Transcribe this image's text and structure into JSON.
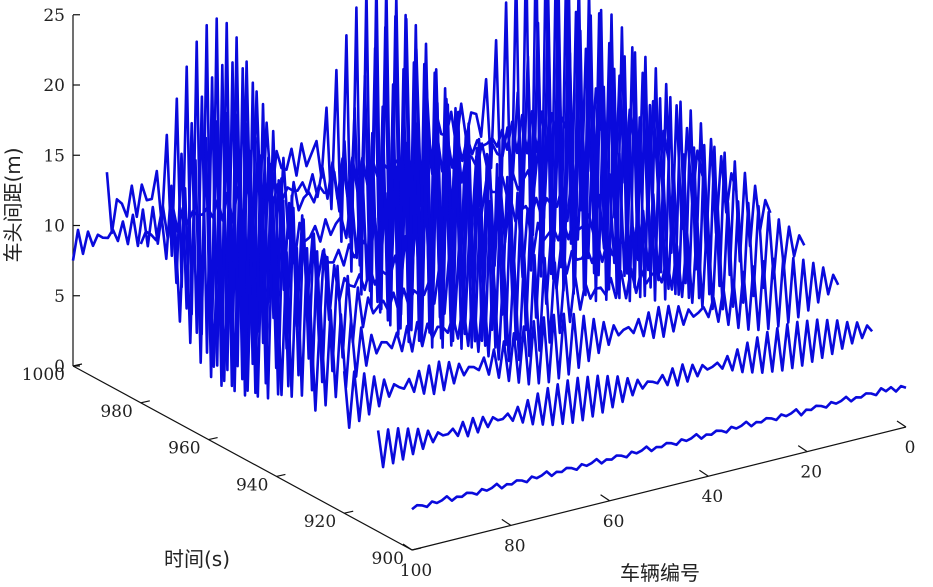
{
  "chart_data": {
    "type": "line",
    "plot_style": "3d waterfall",
    "title": "",
    "xlabel": "车辆编号",
    "ylabel": "时间(s)",
    "zlabel": "车头间距(m)",
    "x_ticks": [
      "0",
      "20",
      "40",
      "60",
      "80",
      "100"
    ],
    "y_ticks": [
      "900",
      "920",
      "940",
      "960",
      "980",
      "1000"
    ],
    "z_ticks": [
      "0",
      "5",
      "10",
      "15",
      "20",
      "25"
    ],
    "xlim": [
      0,
      100
    ],
    "ylim": [
      900,
      1000
    ],
    "zlim": [
      0,
      25
    ],
    "grid": false,
    "line_color": "#0a0adc",
    "series": [
      {
        "time": 900,
        "values": [
          2.8,
          3.0,
          2.7,
          3.1,
          2.9,
          3.2,
          2.8,
          3.0,
          3.1,
          2.9,
          3.0,
          2.8,
          3.2,
          3.0,
          2.9,
          3.1,
          2.8,
          3.0,
          3.1,
          2.9,
          3.0,
          2.7,
          3.2,
          3.0,
          2.9,
          3.1,
          2.8,
          3.0,
          3.1,
          2.9,
          3.0,
          2.8,
          3.2,
          3.0,
          2.9,
          3.1,
          2.8,
          3.0,
          3.1,
          2.9,
          3.0,
          2.8,
          3.2,
          3.0,
          2.9,
          3.1,
          2.8,
          3.0,
          3.1,
          2.9,
          3.0,
          2.8,
          3.2,
          3.0,
          2.9,
          3.1,
          2.8,
          3.0,
          3.1,
          2.9,
          3.0,
          2.8,
          3.2,
          3.0,
          2.9,
          3.1,
          2.8,
          3.0,
          3.1,
          2.9,
          3.0,
          2.8,
          3.2,
          3.0,
          2.9,
          3.1,
          2.8,
          3.0,
          3.1,
          2.9,
          3.0,
          2.8,
          3.2,
          3.0,
          2.9,
          3.1,
          2.8,
          3.0,
          3.1,
          2.9,
          3.0,
          2.8,
          3.2,
          3.0,
          2.9,
          3.1,
          2.8,
          3.0,
          3.1,
          2.9
        ]
      },
      {
        "time": 910,
        "values": [
          5.5,
          6.0,
          5.2,
          6.4,
          5.0,
          6.6,
          4.8,
          6.9,
          4.6,
          7.1,
          4.5,
          7.3,
          4.4,
          7.4,
          4.3,
          7.5,
          4.3,
          7.5,
          4.3,
          7.4,
          4.4,
          7.3,
          4.5,
          7.1,
          4.7,
          6.9,
          4.9,
          6.6,
          5.2,
          6.3,
          5.5,
          6.0,
          5.8,
          5.7,
          6.1,
          5.4,
          6.3,
          5.2,
          6.5,
          5.1,
          6.4,
          5.3,
          6.1,
          5.6,
          5.8,
          5.9,
          5.5,
          6.2,
          5.2,
          6.5,
          4.9,
          6.8,
          4.7,
          7.0,
          4.5,
          7.2,
          4.4,
          7.3,
          4.3,
          7.4,
          4.3,
          7.4,
          4.4,
          7.3,
          4.5,
          7.2,
          4.7,
          7.0,
          4.9,
          6.7,
          5.2,
          6.4,
          5.5,
          6.1,
          5.8,
          5.8,
          6.1,
          5.5,
          6.3,
          5.3,
          6.4,
          5.2,
          6.3,
          5.4,
          6.0,
          5.7,
          5.7,
          6.0,
          5.4,
          6.3,
          5.1,
          6.6,
          4.9,
          6.8,
          4.7,
          7.0,
          4.6,
          7.1,
          4.5,
          7.2
        ]
      },
      {
        "time": 920,
        "values": [
          7.5,
          8.3,
          7.0,
          9.0,
          6.6,
          9.5,
          6.2,
          9.9,
          5.9,
          10.2,
          5.7,
          10.4,
          5.6,
          10.5,
          5.6,
          10.5,
          5.7,
          10.3,
          5.9,
          10.1,
          6.2,
          9.7,
          6.6,
          9.3,
          7.0,
          8.8,
          7.5,
          8.3,
          8.0,
          7.8,
          8.4,
          7.4,
          8.8,
          7.1,
          9.0,
          6.9,
          9.1,
          7.0,
          8.9,
          7.3,
          8.6,
          7.7,
          8.2,
          8.1,
          7.8,
          8.6,
          7.3,
          9.0,
          6.9,
          9.4,
          6.5,
          9.8,
          6.2,
          10.1,
          5.9,
          10.3,
          5.8,
          10.4,
          5.7,
          10.4,
          5.8,
          10.3,
          5.9,
          10.1,
          6.2,
          9.8,
          6.5,
          9.4,
          6.9,
          9.0,
          7.3,
          8.6,
          7.8,
          8.1,
          8.2,
          7.7,
          8.6,
          7.3,
          8.9,
          7.0,
          9.1,
          6.9,
          9.0,
          7.1,
          8.8,
          7.4,
          8.4,
          7.8,
          8.0,
          8.3,
          7.5,
          8.8,
          7.0,
          9.2,
          6.6,
          9.6,
          6.3,
          9.9,
          6.0,
          10.1
        ]
      },
      {
        "time": 930,
        "values": [
          9.0,
          9.8,
          8.4,
          10.6,
          7.8,
          11.3,
          7.2,
          12.0,
          6.7,
          12.6,
          6.3,
          13.0,
          6.0,
          13.3,
          5.9,
          13.4,
          5.9,
          13.3,
          6.1,
          13.0,
          6.4,
          12.5,
          6.9,
          11.9,
          7.5,
          11.2,
          8.2,
          10.5,
          8.9,
          9.8,
          9.6,
          9.1,
          10.1,
          8.6,
          10.4,
          8.4,
          10.4,
          8.6,
          10.1,
          9.0,
          9.6,
          9.6,
          9.0,
          10.2,
          8.4,
          10.9,
          7.7,
          11.6,
          7.1,
          12.2,
          6.6,
          12.7,
          6.2,
          13.1,
          6.0,
          13.3,
          5.9,
          13.3,
          6.0,
          13.1,
          6.3,
          12.7,
          6.7,
          12.2,
          7.2,
          11.6,
          7.8,
          10.9,
          8.5,
          10.2,
          9.1,
          9.6,
          9.7,
          9.0,
          10.1,
          8.6,
          10.4,
          8.4,
          10.3,
          8.6,
          10.0,
          9.0,
          9.5,
          9.6,
          8.9,
          10.3,
          8.2,
          11.0,
          7.6,
          11.7,
          7.0,
          12.3,
          6.5,
          12.8,
          6.1,
          13.1,
          5.9,
          13.3
        ]
      },
      {
        "time": 940,
        "values": [
          10.0,
          11.0,
          9.0,
          12.2,
          8.0,
          13.3,
          7.1,
          14.3,
          6.3,
          15.1,
          5.7,
          15.7,
          5.3,
          16.0,
          5.2,
          16.0,
          5.4,
          15.7,
          5.8,
          15.1,
          6.4,
          14.3,
          7.2,
          13.4,
          8.1,
          12.4,
          9.0,
          11.4,
          9.9,
          10.5,
          10.6,
          9.8,
          11.0,
          9.5,
          11.0,
          9.6,
          10.7,
          10.1,
          10.1,
          10.8,
          9.3,
          11.7,
          8.4,
          12.7,
          7.5,
          13.6,
          6.7,
          14.5,
          6.0,
          15.2,
          5.5,
          15.7,
          5.3,
          15.9,
          5.3,
          15.8,
          5.6,
          15.4,
          6.1,
          14.8,
          6.8,
          14.0,
          7.7,
          13.1,
          8.6,
          12.1,
          9.5,
          11.2,
          10.3,
          10.4,
          10.8,
          9.8,
          11.1,
          9.6,
          11.0,
          9.8,
          10.6,
          10.3,
          9.9,
          11.1,
          9.1,
          12.0,
          8.2,
          13.0,
          7.3,
          13.9,
          6.5,
          14.7,
          5.9,
          15.3,
          5.5,
          15.7,
          5.3,
          15.9,
          5.4,
          15.8,
          5.7,
          15.4
        ]
      },
      {
        "time": 950,
        "values": [
          10.2,
          11.6,
          8.9,
          13.0,
          7.6,
          14.4,
          6.4,
          15.7,
          5.4,
          16.8,
          4.6,
          17.6,
          4.0,
          18.1,
          3.8,
          18.2,
          3.9,
          17.9,
          4.4,
          17.2,
          5.2,
          16.2,
          6.2,
          15.0,
          7.3,
          13.7,
          8.5,
          12.4,
          9.6,
          11.2,
          10.5,
          10.3,
          11.1,
          9.8,
          11.2,
          9.9,
          10.9,
          10.5,
          10.1,
          11.5,
          9.1,
          12.7,
          7.9,
          14.0,
          6.7,
          15.3,
          5.6,
          16.4,
          4.7,
          17.3,
          4.1,
          17.9,
          3.8,
          18.1,
          3.9,
          17.9,
          4.3,
          17.4,
          5.0,
          16.6,
          5.9,
          15.5,
          7.0,
          14.2,
          8.2,
          12.9,
          9.3,
          11.7,
          10.3,
          10.6,
          11.0,
          10.0,
          11.3,
          9.8,
          11.0,
          10.2,
          10.4,
          11.0,
          9.5,
          12.1,
          8.3,
          13.4,
          7.1,
          14.7,
          5.9,
          15.9,
          4.9,
          16.9,
          4.3,
          17.6,
          3.9,
          18.0,
          3.8,
          18.0,
          4.1,
          17.6,
          4.7,
          16.9
        ]
      },
      {
        "time": 960,
        "values": [
          10.0,
          11.9,
          8.3,
          13.7,
          6.6,
          15.5,
          5.1,
          17.2,
          3.9,
          18.5,
          3.0,
          19.5,
          2.5,
          20.0,
          2.4,
          19.9,
          2.8,
          19.2,
          3.6,
          18.1,
          4.8,
          16.7,
          6.2,
          15.0,
          7.7,
          13.3,
          9.2,
          11.8,
          10.4,
          10.6,
          11.2,
          10.0,
          11.4,
          10.1,
          11.0,
          10.8,
          10.1,
          12.0,
          8.8,
          13.5,
          7.3,
          15.1,
          5.8,
          16.6,
          4.5,
          17.9,
          3.4,
          18.9,
          2.7,
          19.6,
          2.4,
          19.9,
          2.6,
          19.6,
          3.2,
          18.8,
          4.2,
          17.6,
          5.5,
          16.1,
          7.0,
          14.4,
          8.5,
          12.8,
          9.9,
          11.4,
          10.9,
          10.4,
          11.4,
          10.0,
          11.2,
          10.4,
          10.5,
          11.4,
          9.4,
          12.7,
          8.0,
          14.3,
          6.5,
          15.9,
          5.1,
          17.3,
          3.9,
          18.5,
          3.0,
          19.3,
          2.5,
          19.8,
          2.5,
          19.7,
          3.0,
          19.0,
          3.9,
          17.9,
          5.1,
          16.5
        ]
      },
      {
        "time": 970,
        "values": [
          9.8,
          12.0,
          7.7,
          14.3,
          5.7,
          16.5,
          3.9,
          18.5,
          2.5,
          20.1,
          1.5,
          21.2,
          1.0,
          21.7,
          1.1,
          21.5,
          1.7,
          20.6,
          2.8,
          19.2,
          4.3,
          17.4,
          6.1,
          15.4,
          7.9,
          13.4,
          9.7,
          11.6,
          11.0,
          10.4,
          11.7,
          10.0,
          11.6,
          10.6,
          10.7,
          11.8,
          9.3,
          13.5,
          7.5,
          15.4,
          5.7,
          17.3,
          4.0,
          18.9,
          2.7,
          20.2,
          1.8,
          21.0,
          1.4,
          21.3,
          1.5,
          21.0,
          2.2,
          20.1,
          3.4,
          18.7,
          4.9,
          17.0,
          6.6,
          15.1,
          8.4,
          13.2,
          10.0,
          11.6,
          11.2,
          10.5,
          11.7,
          10.2,
          11.4,
          10.7,
          10.5,
          11.9,
          9.1,
          13.5,
          7.4,
          15.3,
          5.6,
          17.1,
          4.0,
          18.7,
          2.7,
          19.9,
          1.8,
          20.7,
          1.5,
          21.0,
          1.7,
          20.6,
          2.5,
          19.6,
          3.7,
          18.2,
          5.3,
          16.4,
          7.0,
          14.5
        ]
      },
      {
        "time": 980,
        "values": [
          9.5,
          12.2,
          7.1,
          14.8,
          4.8,
          17.3,
          2.8,
          19.6,
          1.2,
          21.5,
          0.3,
          22.7,
          0.1,
          23.2,
          0.5,
          22.8,
          1.5,
          21.7,
          3.0,
          20.0,
          5.0,
          17.8,
          7.2,
          15.4,
          9.3,
          13.1,
          11.1,
          11.4,
          12.2,
          10.6,
          12.4,
          10.8,
          11.6,
          12.0,
          10.0,
          13.9,
          7.9,
          16.2,
          5.6,
          18.5,
          3.6,
          20.5,
          2.0,
          22.0,
          1.0,
          22.9,
          0.7,
          23.0,
          1.1,
          22.4,
          2.2,
          21.1,
          3.9,
          19.3,
          5.9,
          17.2,
          8.1,
          15.0,
          10.1,
          13.0,
          11.6,
          11.7,
          12.3,
          11.2,
          12.0,
          11.7,
          10.9,
          13.0,
          9.1,
          14.9,
          7.0,
          17.0,
          4.9,
          19.1,
          3.0,
          20.8,
          1.7,
          22.0,
          0.9,
          22.6,
          0.8,
          22.6,
          1.3,
          21.9,
          2.4,
          20.7,
          4.0,
          19.0,
          5.9,
          17.0,
          7.9,
          14.9,
          9.8,
          13.1,
          11.3,
          11.8,
          12.1,
          11.3
        ]
      },
      {
        "time": 990,
        "values": [
          9.3,
          12.4,
          6.6,
          15.4,
          4.0,
          18.2,
          1.8,
          20.7,
          0.3,
          22.6,
          0.0,
          23.8,
          0.0,
          24.1,
          0.6,
          23.6,
          1.8,
          22.2,
          3.7,
          20.1,
          6.0,
          17.6,
          8.6,
          15.0,
          11.0,
          12.7,
          12.9,
          11.1,
          13.7,
          10.8,
          13.3,
          11.7,
          11.9,
          13.5,
          9.7,
          15.9,
          7.1,
          18.4,
          4.6,
          20.7,
          2.5,
          22.5,
          1.1,
          23.6,
          0.5,
          24.0,
          0.8,
          23.6,
          1.9,
          22.4,
          3.7,
          20.6,
          6.0,
          18.3,
          8.5,
          15.8,
          10.9,
          13.6,
          12.8,
          12.0,
          13.7,
          11.5,
          13.5,
          12.1,
          12.3,
          13.6,
          10.3,
          15.8,
          7.9,
          18.2,
          5.4,
          20.5,
          3.2,
          22.4,
          1.7,
          23.6,
          0.9,
          24.1,
          1.0,
          23.8,
          1.9,
          22.8,
          3.5,
          21.2,
          5.6,
          19.1,
          8.0,
          16.7,
          10.4,
          14.3,
          12.4,
          12.4,
          13.6,
          11.4,
          13.7,
          11.6,
          12.6,
          13.0,
          10.7,
          15.1
        ]
      },
      {
        "time": 1000,
        "values": [
          8.0,
          9.0,
          7.5,
          9.5,
          7.2,
          9.8,
          7.0,
          10.0,
          7.1,
          9.9,
          7.3,
          9.6,
          7.7,
          9.2,
          8.1,
          8.8,
          8.5,
          8.4,
          8.9,
          8.0,
          9.3,
          7.7,
          9.6,
          7.4,
          9.8,
          7.3,
          9.9,
          7.3,
          9.8,
          7.5,
          9.6,
          7.8,
          9.3,
          8.2,
          8.9,
          8.6,
          8.5,
          9.0,
          8.1,
          9.4,
          7.7,
          9.7,
          7.4,
          9.9,
          7.2,
          10.0,
          7.2,
          9.9,
          7.4,
          9.7,
          7.7,
          9.4,
          8.1,
          9.0,
          8.5,
          8.6,
          8.9,
          8.2,
          9.3,
          7.8,
          9.6,
          7.5,
          9.8,
          7.3,
          9.9,
          7.3,
          9.8,
          7.4,
          9.6,
          7.7,
          9.3,
          8.1,
          8.9,
          8.5,
          8.5,
          8.9,
          8.1,
          9.3,
          7.7,
          9.6,
          7.4,
          9.8,
          7.2,
          9.9,
          7.2,
          9.9,
          7.4,
          9.7,
          7.7,
          9.4,
          8.1,
          9.0,
          8.5,
          8.6,
          8.9,
          8.2,
          9.3,
          7.8,
          9.6,
          7.5
        ]
      }
    ]
  }
}
